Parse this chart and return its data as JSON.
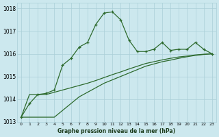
{
  "x": [
    0,
    1,
    2,
    3,
    4,
    5,
    6,
    7,
    8,
    9,
    10,
    11,
    12,
    13,
    14,
    15,
    16,
    17,
    18,
    19,
    20,
    21,
    22,
    23
  ],
  "y_main": [
    1013.2,
    1013.8,
    1014.2,
    1014.25,
    1014.4,
    1015.5,
    1015.8,
    1016.3,
    1016.5,
    1017.3,
    1017.8,
    1017.85,
    1017.5,
    1016.6,
    1016.1,
    1016.1,
    1016.2,
    1016.5,
    1016.15,
    1016.2,
    1016.2,
    1016.5,
    1016.2,
    1016.0
  ],
  "y_low1": [
    1013.2,
    1013.2,
    1013.2,
    1013.2,
    1013.2,
    1013.5,
    1013.8,
    1014.1,
    1014.3,
    1014.5,
    1014.7,
    1014.85,
    1015.0,
    1015.15,
    1015.3,
    1015.45,
    1015.55,
    1015.65,
    1015.72,
    1015.8,
    1015.87,
    1015.93,
    1015.97,
    1016.0
  ],
  "y_low2": [
    1013.2,
    1014.2,
    1014.2,
    1014.2,
    1014.3,
    1014.4,
    1014.5,
    1014.6,
    1014.7,
    1014.82,
    1014.95,
    1015.08,
    1015.2,
    1015.33,
    1015.45,
    1015.57,
    1015.65,
    1015.73,
    1015.8,
    1015.86,
    1015.9,
    1015.95,
    1015.98,
    1016.0
  ],
  "ylim": [
    1013.0,
    1018.25
  ],
  "yticks": [
    1013,
    1014,
    1015,
    1016,
    1017,
    1018
  ],
  "xlim": [
    -0.5,
    23.5
  ],
  "bg_color": "#cce8ee",
  "grid_color": "#aacfd8",
  "line_color": "#2d6a2d",
  "xlabel": "Graphe pression niveau de la mer (hPa)"
}
